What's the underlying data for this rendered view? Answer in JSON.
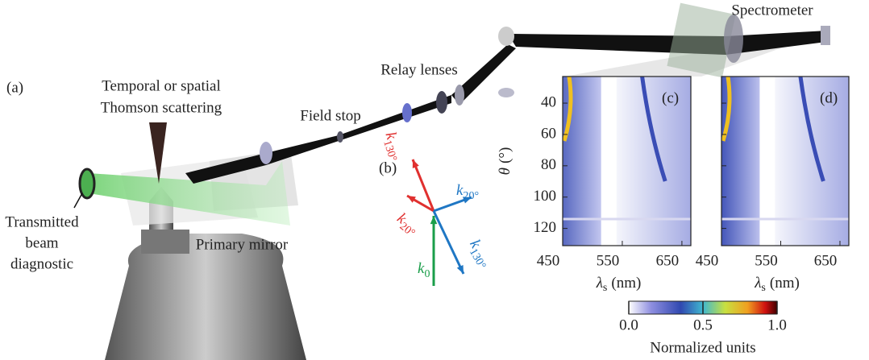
{
  "panel_labels": {
    "a": "(a)",
    "b": "(b)"
  },
  "setup_labels": {
    "thomson": [
      "Temporal or spatial",
      "Thomson scattering"
    ],
    "transmitted": [
      "Transmitted",
      "beam",
      "diagnostic"
    ],
    "primary_mirror": "Primary mirror",
    "field_stop": "Field stop",
    "relay_lenses": "Relay lenses",
    "spectrometer": "Spectrometer"
  },
  "wavevectors": [
    {
      "symbol": "k",
      "subscript": "130°",
      "color": "#e0302f"
    },
    {
      "symbol": "k",
      "subscript": "20°",
      "color": "#e0302f"
    },
    {
      "symbol": "k",
      "subscript": "20°",
      "color": "#1f77c4"
    },
    {
      "symbol": "k",
      "subscript": "130°",
      "color": "#1f77c4"
    },
    {
      "symbol": "k",
      "subscript": "0",
      "color": "#1a9e4a"
    }
  ],
  "charts": [
    {
      "type": "heatmap",
      "label": "(c)",
      "xlabel": {
        "symbol": "λ",
        "subscript": "s",
        "unit": "(nm)"
      },
      "ylabel": {
        "symbol": "θ",
        "unit": "(°)"
      },
      "xlim": [
        450,
        665
      ],
      "xticks": [
        450,
        550,
        650
      ],
      "ylim": [
        131,
        23
      ],
      "yticks": [
        40,
        60,
        80,
        100,
        120
      ]
    },
    {
      "type": "heatmap",
      "label": "(d)",
      "xlabel": {
        "symbol": "λ",
        "subscript": "s",
        "unit": "(nm)"
      },
      "xlim": [
        450,
        665
      ],
      "xticks": [
        450,
        550,
        650
      ],
      "ylim": [
        131,
        23
      ],
      "yticks": [
        40,
        60,
        80,
        100,
        120
      ]
    }
  ],
  "colorbar": {
    "lim": [
      0,
      1
    ],
    "ticks": [
      {
        "value": 0,
        "label": "0.0"
      },
      {
        "value": 0.5,
        "label": "0.5"
      },
      {
        "value": 1,
        "label": "1.0"
      }
    ],
    "label": "Normalized units"
  }
}
